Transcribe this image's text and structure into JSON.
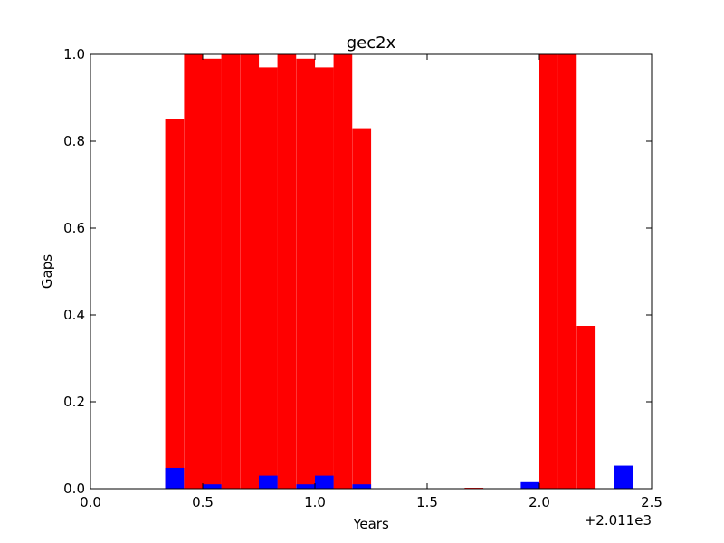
{
  "chart_data": {
    "type": "bar",
    "title": "gec2x",
    "xlabel": "Years",
    "ylabel": "Gaps",
    "x_offset_label": "+2.011e3",
    "xlim": [
      0.0,
      2.5
    ],
    "ylim": [
      0.0,
      1.0
    ],
    "x_ticks": [
      "0.0",
      "0.5",
      "1.0",
      "1.5",
      "2.0",
      "2.5"
    ],
    "y_ticks": [
      "0.0",
      "0.2",
      "0.4",
      "0.6",
      "0.8",
      "1.0"
    ],
    "bin_width": 0.0833,
    "grid": false,
    "legend": false,
    "series": [
      {
        "color": "#ff0000",
        "bars": [
          {
            "x": 0.333,
            "y": 0.85
          },
          {
            "x": 0.417,
            "y": 1.0
          },
          {
            "x": 0.5,
            "y": 0.99
          },
          {
            "x": 0.583,
            "y": 1.0
          },
          {
            "x": 0.667,
            "y": 1.0
          },
          {
            "x": 0.75,
            "y": 0.97
          },
          {
            "x": 0.833,
            "y": 1.0
          },
          {
            "x": 0.917,
            "y": 0.99
          },
          {
            "x": 1.0,
            "y": 0.97
          },
          {
            "x": 1.083,
            "y": 1.0
          },
          {
            "x": 1.167,
            "y": 0.83
          },
          {
            "x": 1.667,
            "y": 0.002
          },
          {
            "x": 2.0,
            "y": 1.0
          },
          {
            "x": 2.083,
            "y": 1.0
          },
          {
            "x": 2.167,
            "y": 0.375
          }
        ]
      },
      {
        "color": "#0000ff",
        "bars": [
          {
            "x": 0.333,
            "y": 0.048
          },
          {
            "x": 0.5,
            "y": 0.01
          },
          {
            "x": 0.75,
            "y": 0.03
          },
          {
            "x": 0.917,
            "y": 0.01
          },
          {
            "x": 1.0,
            "y": 0.03
          },
          {
            "x": 1.167,
            "y": 0.01
          },
          {
            "x": 1.917,
            "y": 0.015
          },
          {
            "x": 2.333,
            "y": 0.053
          }
        ]
      }
    ]
  }
}
